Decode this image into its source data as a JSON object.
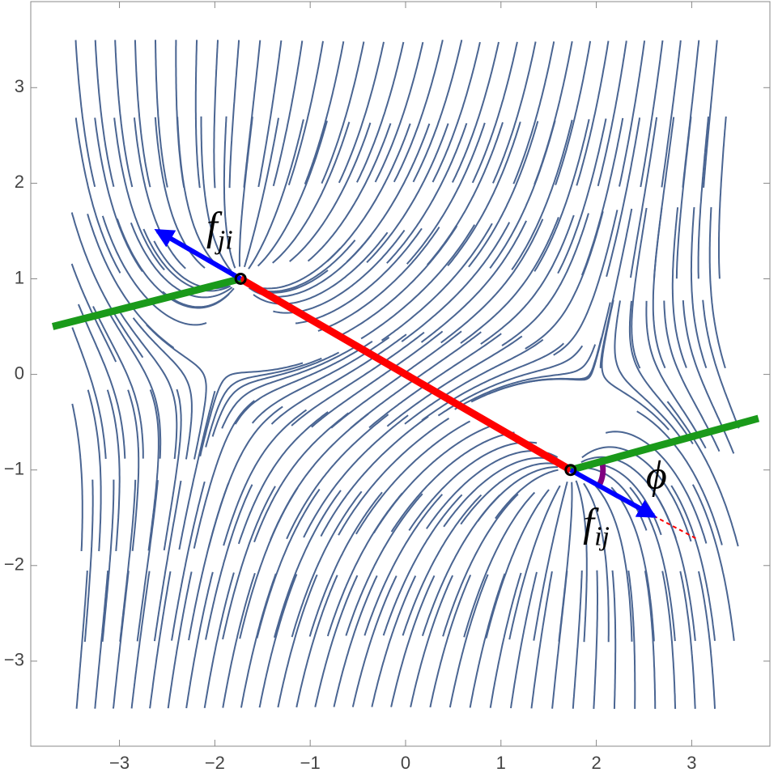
{
  "chart_data": {
    "type": "stream",
    "xlim": [
      -3.93,
      3.82
    ],
    "ylim": [
      -3.89,
      3.9
    ],
    "xticks": [
      {
        "value": -3,
        "label": "−3"
      },
      {
        "value": -2,
        "label": "−2"
      },
      {
        "value": -1,
        "label": "−1"
      },
      0,
      1,
      2,
      3
    ],
    "yticks": [
      {
        "value": -3,
        "label": "−3"
      },
      {
        "value": -2,
        "label": "−2"
      },
      {
        "value": -1,
        "label": "−1"
      },
      0,
      1,
      2,
      3
    ],
    "stream_color": "#4a6592",
    "points": {
      "x": [
        -1.73,
        1.73
      ],
      "y": [
        1,
        -1
      ],
      "color": "#000000"
    },
    "lines": [
      {
        "name": "bond",
        "color": "#ff0000",
        "x": [
          -1.73,
          1.73
        ],
        "y": [
          1,
          -1
        ]
      },
      {
        "name": "orientation-i",
        "color": "#1a9a1a",
        "x": [
          -3.7,
          -1.73
        ],
        "y": [
          0.5,
          1
        ]
      },
      {
        "name": "orientation-j",
        "color": "#1a9a1a",
        "x": [
          1.73,
          3.7
        ],
        "y": [
          -1,
          -0.46
        ]
      },
      {
        "name": "extension",
        "color": "#ff0000",
        "dashed": true,
        "x": [
          2.6,
          3.07
        ],
        "y": [
          -1.48,
          -1.73
        ]
      }
    ],
    "arrows": [
      {
        "color": "#0000ff",
        "x": [
          -1.73,
          -2.6
        ],
        "y": [
          1,
          1.5
        ]
      },
      {
        "color": "#0000ff",
        "x": [
          1.73,
          2.6
        ],
        "y": [
          -1,
          -1.48
        ]
      }
    ],
    "annotations": [
      {
        "text": "f",
        "sub": "ji",
        "x": -1.95,
        "y": 1.5
      },
      {
        "text": "f",
        "sub": "ij",
        "x": 2.0,
        "y": -1.6
      },
      {
        "text": "ϕ",
        "x": 2.63,
        "y": -1.1
      }
    ]
  }
}
